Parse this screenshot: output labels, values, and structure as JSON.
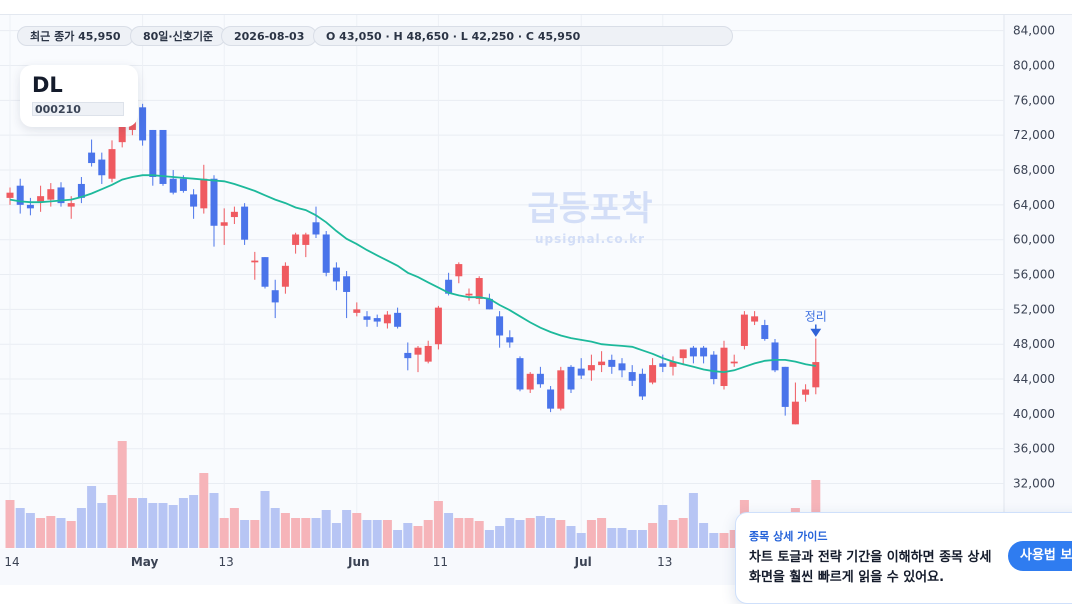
{
  "chart_data": {
    "type": "candlestick",
    "chips": [
      "최근 종가 45,950",
      "80일·신호기준",
      "2026-08-03",
      "O 43,050 · H 48,650 · L 42,250 · C 45,950"
    ],
    "symbol": "DL",
    "code": "000210",
    "watermark": "급등포착",
    "watermark_url": "upsignal.co.kr",
    "signal_label": "정리",
    "guide": {
      "title": "종목 상세 가이드",
      "line1": "차트 토글과 전략 기간을 이해하면 종목 상세",
      "line2": "화면을 훨씬 빠르게 읽을 수 있어요.",
      "button": "사용법 보기"
    },
    "categories": [
      "14",
      null,
      null,
      null,
      null,
      null,
      null,
      null,
      null,
      null,
      null,
      null,
      null,
      "May",
      null,
      null,
      null,
      null,
      null,
      null,
      null,
      "13",
      null,
      null,
      null,
      null,
      null,
      null,
      null,
      null,
      null,
      null,
      null,
      null,
      "Jun",
      null,
      null,
      null,
      null,
      null,
      null,
      null,
      "11",
      null,
      null,
      null,
      null,
      null,
      null,
      null,
      null,
      null,
      null,
      null,
      null,
      null,
      "Jul",
      null,
      null,
      null,
      null,
      null,
      null,
      null,
      "13",
      null,
      null,
      null,
      null,
      null,
      null,
      null,
      null,
      null,
      null,
      null,
      null,
      null,
      null,
      null
    ],
    "open": [
      64800,
      66200,
      64000,
      64400,
      64600,
      66000,
      63800,
      66400,
      70000,
      69200,
      67000,
      71200,
      72600,
      75200,
      72600,
      72600,
      67000,
      67000,
      65200,
      63600,
      67000,
      61600,
      62600,
      63800,
      57400,
      58000,
      54200,
      54600,
      59400,
      59400,
      62000,
      60600,
      56800,
      55800,
      51600,
      51200,
      51000,
      50400,
      51600,
      47000,
      46800,
      46000,
      48000,
      55400,
      55800,
      53600,
      53200,
      53200,
      51200,
      48800,
      46400,
      42800,
      44600,
      42800,
      40600,
      45400,
      45200,
      45000,
      45600,
      46200,
      45800,
      44800,
      44600,
      43600,
      45800,
      45400,
      46400,
      47600,
      47600,
      46800,
      43200,
      45800,
      47800,
      50600,
      50200,
      48200,
      45400,
      38800,
      42200,
      43050
    ],
    "high": [
      66000,
      67000,
      64800,
      66200,
      66500,
      66600,
      65000,
      67200,
      71500,
      70000,
      71400,
      74000,
      75600,
      75600,
      72600,
      72600,
      68000,
      67400,
      65800,
      68600,
      67400,
      63600,
      63800,
      64200,
      58600,
      58000,
      55400,
      57400,
      60800,
      60800,
      63800,
      61000,
      57400,
      56400,
      52800,
      51800,
      51400,
      51800,
      52200,
      48200,
      47800,
      48400,
      52400,
      56200,
      57400,
      54400,
      55800,
      53800,
      51800,
      49600,
      46600,
      44800,
      45400,
      43200,
      45400,
      45600,
      46400,
      46800,
      47200,
      46800,
      46400,
      45600,
      45200,
      46400,
      46800,
      46600,
      47400,
      47800,
      47800,
      47200,
      48400,
      46800,
      51800,
      51800,
      50800,
      48600,
      45400,
      43600,
      43400,
      48650
    ],
    "low": [
      64000,
      63000,
      62800,
      63200,
      63800,
      63800,
      62400,
      64200,
      68400,
      66400,
      66600,
      70600,
      72000,
      70800,
      66200,
      66200,
      65200,
      65400,
      62400,
      63000,
      59200,
      59400,
      61800,
      59400,
      55400,
      54400,
      51000,
      53800,
      58400,
      58000,
      60200,
      55800,
      54200,
      51000,
      51200,
      50000,
      50000,
      49800,
      49800,
      45000,
      44800,
      45800,
      47400,
      53600,
      55000,
      53000,
      52600,
      52000,
      47600,
      47600,
      42600,
      42400,
      43000,
      40200,
      40400,
      42400,
      44000,
      43800,
      44800,
      44600,
      44200,
      43200,
      41600,
      43400,
      44800,
      44400,
      45600,
      45800,
      45800,
      43400,
      42800,
      45400,
      47400,
      50200,
      48400,
      44800,
      39800,
      38800,
      41400,
      42250
    ],
    "close": [
      65400,
      64000,
      63600,
      65000,
      65800,
      64200,
      64200,
      64800,
      68800,
      67400,
      70400,
      73400,
      74600,
      71400,
      67200,
      66400,
      65400,
      65600,
      63800,
      67000,
      61600,
      62000,
      63200,
      60000,
      57600,
      54600,
      52800,
      57000,
      60600,
      60600,
      60600,
      56200,
      55200,
      54000,
      52000,
      50800,
      50600,
      51400,
      50000,
      46400,
      47600,
      47800,
      52200,
      53800,
      57200,
      53800,
      55600,
      52000,
      49000,
      48200,
      42800,
      44600,
      43400,
      40600,
      45000,
      42800,
      44400,
      45600,
      46000,
      45400,
      45000,
      43800,
      42000,
      45600,
      45400,
      46000,
      47400,
      46600,
      46600,
      44000,
      47600,
      46000,
      51400,
      51200,
      48600,
      45000,
      40800,
      41400,
      42800,
      45950
    ],
    "ma": [
      64600,
      64400,
      64300,
      64300,
      64400,
      64500,
      64600,
      64900,
      65300,
      65800,
      66300,
      66900,
      67200,
      67400,
      67400,
      67300,
      67200,
      67100,
      67000,
      66900,
      66800,
      66700,
      66400,
      66000,
      65600,
      65100,
      64600,
      64200,
      63700,
      63400,
      62800,
      62000,
      61000,
      60100,
      59500,
      58800,
      58200,
      57600,
      57000,
      56200,
      55700,
      55100,
      54500,
      53900,
      53600,
      53400,
      53400,
      53200,
      52500,
      51900,
      51200,
      50500,
      49900,
      49400,
      49000,
      48700,
      48500,
      48300,
      48000,
      47900,
      47800,
      47700,
      47300,
      46900,
      46400,
      46000,
      45700,
      45400,
      45100,
      44900,
      44800,
      45000,
      45400,
      45800,
      46100,
      46200,
      46200,
      46000,
      45700,
      45500
    ],
    "volume": [
      48000,
      40000,
      35000,
      30000,
      32000,
      30000,
      27000,
      40000,
      62000,
      45000,
      53000,
      107000,
      50000,
      50000,
      45000,
      45000,
      43000,
      50000,
      53000,
      75000,
      55000,
      30000,
      40000,
      28000,
      28000,
      57000,
      40000,
      35000,
      30000,
      30000,
      30000,
      38000,
      25000,
      38000,
      35000,
      28000,
      28000,
      28000,
      18000,
      25000,
      22000,
      28000,
      47000,
      35000,
      30000,
      30000,
      27000,
      18000,
      22000,
      30000,
      28000,
      30000,
      32000,
      30000,
      28000,
      22000,
      15000,
      28000,
      30000,
      20000,
      20000,
      18000,
      18000,
      25000,
      43000,
      28000,
      30000,
      55000,
      25000,
      15000,
      15000,
      18000,
      48000,
      23000,
      20000,
      15000,
      25000,
      40000,
      25000,
      68000
    ],
    "colors": {
      "up": "#ef5a60",
      "down": "#4a74ea",
      "up_volume": "#f6b4b9",
      "down_volume": "#b7c5f4",
      "ma": "#1db99b"
    },
    "ylim": [
      24600,
      85800
    ],
    "yticks": [
      {
        "value": 32000,
        "label": "32,000"
      },
      {
        "value": 36000,
        "label": "36,000"
      },
      {
        "value": 40000,
        "label": "40,000"
      },
      {
        "value": 44000,
        "label": "44,000"
      },
      {
        "value": 48000,
        "label": "48,000"
      },
      {
        "value": 52000,
        "label": "52,000"
      },
      {
        "value": 56000,
        "label": "56,000"
      },
      {
        "value": 60000,
        "label": "60,000"
      },
      {
        "value": 64000,
        "label": "64,000"
      },
      {
        "value": 68000,
        "label": "68,000"
      },
      {
        "value": 72000,
        "label": "72,000"
      },
      {
        "value": 76000,
        "label": "76,000"
      },
      {
        "value": 80000,
        "label": "80,000"
      },
      {
        "value": 84000,
        "label": "84,000"
      }
    ],
    "grid": true
  }
}
